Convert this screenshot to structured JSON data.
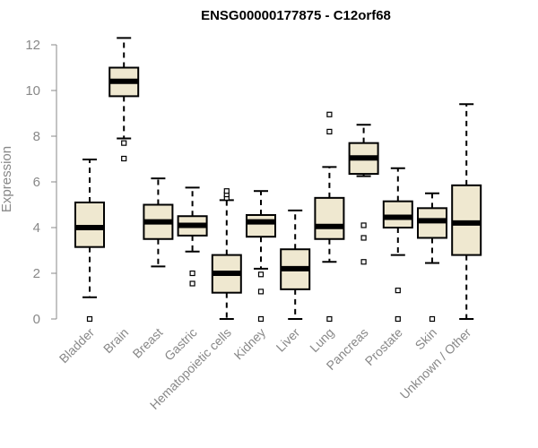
{
  "chart_data": {
    "type": "boxplot",
    "title": "ENSG00000177875 - C12orf68",
    "xlabel": "",
    "ylabel": "Expression",
    "ylim": [
      0,
      12
    ],
    "yticks": [
      0,
      2,
      4,
      6,
      8,
      10,
      12
    ],
    "box_fill": "#efe8d0",
    "box_stroke": "#000000",
    "axis_color": "#888888",
    "categories": [
      "Bladder",
      "Brain",
      "Breast",
      "Gastric",
      "Hematopoietic cells",
      "Kidney",
      "Liver",
      "Lung",
      "Pancreas",
      "Prostate",
      "Skin",
      "Unknown / Other"
    ],
    "boxes": [
      {
        "name": "Bladder",
        "whisker_low": 0.95,
        "q1": 3.15,
        "median": 4.0,
        "q3": 5.1,
        "whisker_high": 6.98,
        "outliers": [
          0.0
        ]
      },
      {
        "name": "Brain",
        "whisker_low": 7.9,
        "q1": 9.75,
        "median": 10.4,
        "q3": 11.0,
        "whisker_high": 12.3,
        "outliers": [
          7.02,
          7.7
        ]
      },
      {
        "name": "Breast",
        "whisker_low": 2.3,
        "q1": 3.5,
        "median": 4.25,
        "q3": 5.0,
        "whisker_high": 6.15,
        "outliers": []
      },
      {
        "name": "Gastric",
        "whisker_low": 2.95,
        "q1": 3.65,
        "median": 4.1,
        "q3": 4.5,
        "whisker_high": 5.75,
        "outliers": [
          1.55,
          2.0
        ]
      },
      {
        "name": "Hematopoietic cells",
        "whisker_low": 0.0,
        "q1": 1.15,
        "median": 2.0,
        "q3": 2.8,
        "whisker_high": 5.2,
        "outliers": [
          5.3,
          5.45,
          5.6
        ]
      },
      {
        "name": "Kidney",
        "whisker_low": 2.2,
        "q1": 3.6,
        "median": 4.25,
        "q3": 4.55,
        "whisker_high": 5.6,
        "outliers": [
          0.0,
          1.2,
          1.95
        ]
      },
      {
        "name": "Liver",
        "whisker_low": 0.0,
        "q1": 1.3,
        "median": 2.2,
        "q3": 3.05,
        "whisker_high": 4.75,
        "outliers": []
      },
      {
        "name": "Lung",
        "whisker_low": 2.5,
        "q1": 3.5,
        "median": 4.05,
        "q3": 5.3,
        "whisker_high": 6.65,
        "outliers": [
          0.0,
          8.2,
          8.95
        ]
      },
      {
        "name": "Pancreas",
        "whisker_low": 6.25,
        "q1": 6.35,
        "median": 7.05,
        "q3": 7.7,
        "whisker_high": 8.5,
        "outliers": [
          2.5,
          3.55,
          4.1
        ]
      },
      {
        "name": "Prostate",
        "whisker_low": 2.8,
        "q1": 4.0,
        "median": 4.45,
        "q3": 5.15,
        "whisker_high": 6.6,
        "outliers": [
          0.0,
          1.25
        ]
      },
      {
        "name": "Skin",
        "whisker_low": 2.45,
        "q1": 3.55,
        "median": 4.3,
        "q3": 4.85,
        "whisker_high": 5.5,
        "outliers": [
          0.0
        ]
      },
      {
        "name": "Unknown / Other",
        "whisker_low": 0.0,
        "q1": 2.8,
        "median": 4.2,
        "q3": 5.85,
        "whisker_high": 9.4,
        "outliers": []
      }
    ]
  }
}
